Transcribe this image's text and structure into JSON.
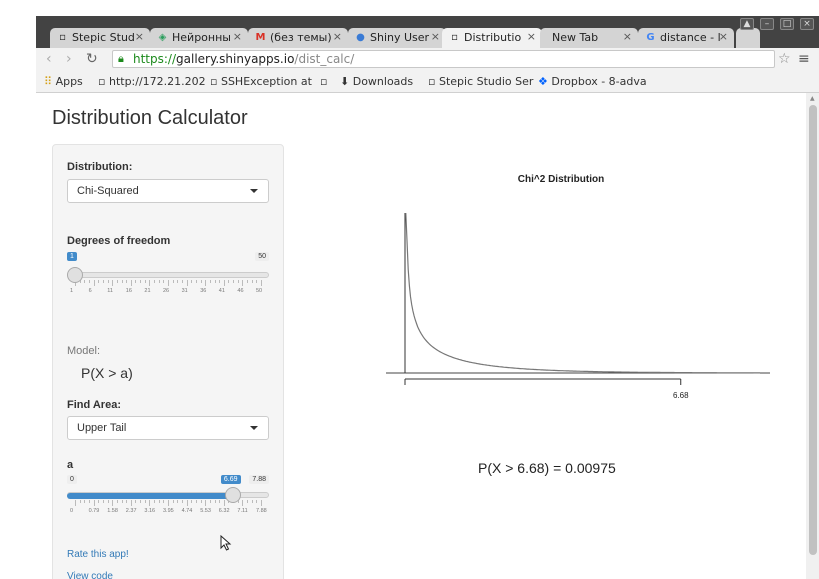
{
  "browser": {
    "tabs": [
      {
        "title": "Stepic Stud",
        "icon": "doc-icon",
        "active": false
      },
      {
        "title": "Нейронны",
        "icon": "green-icon",
        "active": false
      },
      {
        "title": "(без темы)",
        "icon": "gmail-icon",
        "active": false
      },
      {
        "title": "Shiny User",
        "icon": "shiny-icon",
        "active": false
      },
      {
        "title": "Distributio",
        "icon": "doc-icon",
        "active": true
      },
      {
        "title": "New Tab",
        "icon": "",
        "active": false
      },
      {
        "title": "distance - l",
        "icon": "google-icon",
        "active": false
      }
    ],
    "url": {
      "scheme": "https://",
      "host": "gallery.shinyapps.io",
      "path": "/dist_calc/"
    },
    "bookmarks": [
      "Apps",
      "http://172.21.202",
      "SSHException at",
      "",
      "Downloads",
      "Stepic Studio Ser",
      "Dropbox - 8-adva"
    ]
  },
  "page": {
    "title": "Distribution Calculator",
    "distribution_label": "Distribution:",
    "distribution_value": "Chi-Squared",
    "dof_label": "Degrees of freedom",
    "dof": {
      "min": 1,
      "max": 50,
      "value": 1,
      "grid": [
        "1",
        "6",
        "11",
        "16",
        "21",
        "26",
        "31",
        "36",
        "41",
        "46",
        "50"
      ]
    },
    "model_label": "Model:",
    "model_text": "P(X > a)",
    "find_area_label": "Find Area:",
    "find_area_value": "Upper Tail",
    "a_label": "a",
    "a": {
      "min": "0",
      "max": "7.88",
      "value": "6.69",
      "value_num": 6.69,
      "max_num": 7.88,
      "grid": [
        "0",
        "0.79",
        "1.58",
        "2.37",
        "3.16",
        "3.95",
        "4.74",
        "5.53",
        "6.32",
        "7.11",
        "7.88"
      ]
    },
    "rate_link": "Rate this app!",
    "view_code_link": "View code"
  },
  "chart_data": {
    "type": "line",
    "title": "Chi^2 Distribution",
    "series": [
      {
        "df": 1
      }
    ],
    "marker_label": "6.68",
    "marker_x": 6.68,
    "xlim": [
      0,
      8.6
    ]
  },
  "result_text": "P(X > 6.68) = 0.00975",
  "colors": {
    "slider_fill": "#428bca",
    "link": "#337ab7",
    "curve": "#777777"
  }
}
